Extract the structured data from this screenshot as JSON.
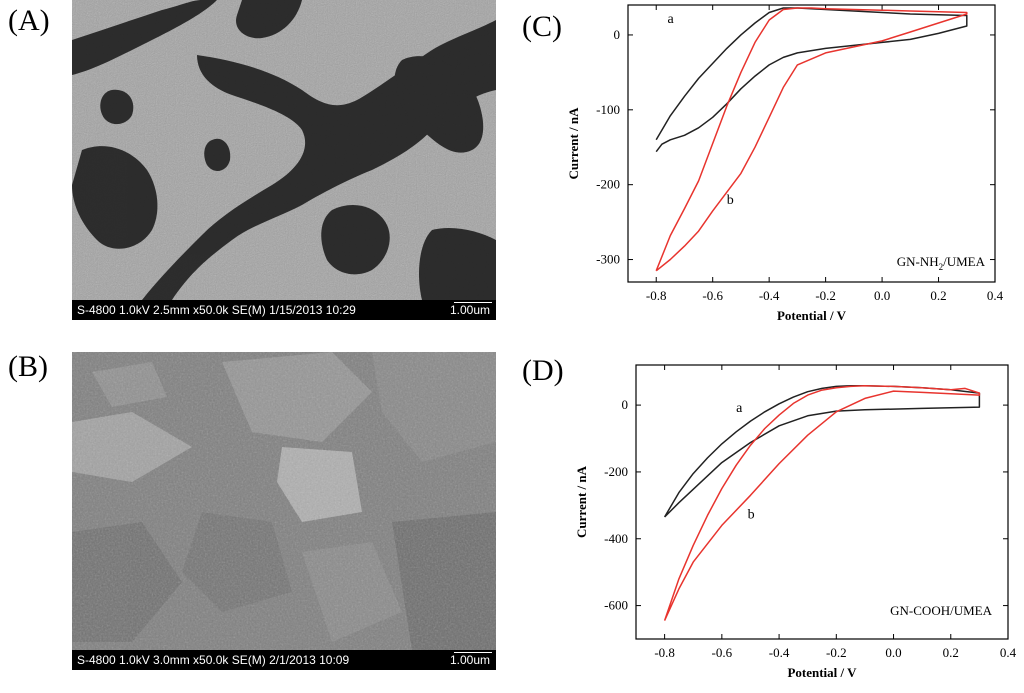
{
  "panels": {
    "A": {
      "label": "(A)"
    },
    "B": {
      "label": "(B)"
    },
    "C": {
      "label": "(C)"
    },
    "D": {
      "label": "(D)"
    }
  },
  "sem_a": {
    "meta": "S-4800 1.0kV 2.5mm x50.0k SE(M) 1/15/2013 10:29",
    "scale": "1.00um"
  },
  "sem_b": {
    "meta": "S-4800 1.0kV 3.0mm x50.0k SE(M) 2/1/2013 10:09",
    "scale": "1.00um"
  },
  "chart_data": [
    {
      "type": "line",
      "panel": "C",
      "annotation": "GN-NH2/UMEA",
      "annotation_main": "GN-NH",
      "annotation_sub": "2",
      "annotation_tail": "/UMEA",
      "xlabel": "Potential / V",
      "ylabel": "Current / nA",
      "xlim": [
        -0.9,
        0.4
      ],
      "ylim": [
        -330,
        40
      ],
      "xticks": [
        -0.8,
        -0.6,
        -0.4,
        -0.2,
        0.0,
        0.2,
        0.4
      ],
      "xtick_labels": [
        "-0.8",
        "-0.6",
        "-0.4",
        "-0.2",
        "0.0",
        "0.2",
        "0.4"
      ],
      "yticks": [
        0,
        -100,
        -200,
        -300
      ],
      "ytick_labels": [
        "0",
        "-100",
        "-200",
        "-300"
      ],
      "series": [
        {
          "name": "a",
          "color": "#222222",
          "label_at": [
            -0.76,
            16
          ],
          "x": [
            -0.8,
            -0.75,
            -0.7,
            -0.65,
            -0.6,
            -0.55,
            -0.5,
            -0.45,
            -0.4,
            -0.35,
            -0.3,
            -0.25,
            -0.2,
            -0.1,
            0.0,
            0.1,
            0.2,
            0.3,
            0.3,
            0.2,
            0.1,
            0.0,
            -0.1,
            -0.2,
            -0.3,
            -0.35,
            -0.4,
            -0.45,
            -0.5,
            -0.55,
            -0.6,
            -0.65,
            -0.7,
            -0.75,
            -0.78,
            -0.8
          ],
          "y": [
            -140,
            -108,
            -82,
            -58,
            -38,
            -18,
            0,
            16,
            30,
            36,
            36,
            35,
            34,
            32,
            30,
            28,
            27,
            26,
            12,
            2,
            -6,
            -10,
            -14,
            -18,
            -24,
            -30,
            -40,
            -55,
            -72,
            -92,
            -110,
            -124,
            -134,
            -140,
            -146,
            -156
          ]
        },
        {
          "name": "b",
          "color": "#e8342e",
          "label_at": [
            -0.55,
            -226
          ],
          "x": [
            -0.8,
            -0.75,
            -0.7,
            -0.65,
            -0.6,
            -0.55,
            -0.5,
            -0.45,
            -0.4,
            -0.35,
            -0.3,
            -0.25,
            -0.2,
            -0.1,
            0.0,
            0.1,
            0.2,
            0.3,
            0.3,
            0.2,
            0.1,
            0.0,
            -0.1,
            -0.2,
            -0.3,
            -0.35,
            -0.4,
            -0.45,
            -0.5,
            -0.55,
            -0.6,
            -0.65,
            -0.7,
            -0.75,
            -0.8
          ],
          "y": [
            -315,
            -268,
            -232,
            -195,
            -145,
            -95,
            -50,
            -10,
            20,
            34,
            36,
            36,
            35,
            34,
            33,
            32,
            31,
            30,
            28,
            16,
            4,
            -8,
            -16,
            -24,
            -40,
            -70,
            -110,
            -150,
            -185,
            -210,
            -235,
            -262,
            -282,
            -300,
            -315
          ]
        }
      ]
    },
    {
      "type": "line",
      "panel": "D",
      "annotation": "GN-COOH/UMEA",
      "xlabel": "Potential / V",
      "ylabel": "Current / nA",
      "xlim": [
        -0.9,
        0.4
      ],
      "ylim": [
        -700,
        120
      ],
      "xticks": [
        -0.8,
        -0.6,
        -0.4,
        -0.2,
        0.0,
        0.2,
        0.4
      ],
      "xtick_labels": [
        "-0.8",
        "-0.6",
        "-0.4",
        "-0.2",
        "0.0",
        "0.2",
        "0.4"
      ],
      "yticks": [
        0,
        -200,
        -400,
        -600
      ],
      "ytick_labels": [
        "0",
        "-200",
        "-400",
        "-600"
      ],
      "series": [
        {
          "name": "a",
          "color": "#222222",
          "label_at": [
            -0.55,
            -20
          ],
          "x": [
            -0.8,
            -0.75,
            -0.7,
            -0.65,
            -0.6,
            -0.55,
            -0.5,
            -0.45,
            -0.4,
            -0.35,
            -0.3,
            -0.25,
            -0.2,
            -0.15,
            -0.1,
            0.0,
            0.1,
            0.2,
            0.3,
            0.3,
            0.2,
            0.1,
            0.0,
            -0.1,
            -0.2,
            -0.3,
            -0.4,
            -0.5,
            -0.6,
            -0.65,
            -0.7,
            -0.75,
            -0.8
          ],
          "y": [
            -335,
            -262,
            -205,
            -158,
            -116,
            -80,
            -48,
            -20,
            4,
            24,
            40,
            50,
            56,
            58,
            58,
            56,
            52,
            46,
            36,
            -6,
            -8,
            -10,
            -12,
            -14,
            -18,
            -32,
            -62,
            -112,
            -172,
            -212,
            -252,
            -292,
            -335
          ]
        },
        {
          "name": "b",
          "color": "#e8342e",
          "label_at": [
            -0.51,
            -340
          ],
          "x": [
            -0.8,
            -0.75,
            -0.7,
            -0.65,
            -0.6,
            -0.55,
            -0.5,
            -0.45,
            -0.4,
            -0.35,
            -0.3,
            -0.25,
            -0.2,
            -0.15,
            -0.1,
            0.0,
            0.1,
            0.2,
            0.25,
            0.3,
            0.3,
            0.2,
            0.1,
            0.0,
            -0.1,
            -0.2,
            -0.3,
            -0.4,
            -0.5,
            -0.6,
            -0.7,
            -0.75,
            -0.8
          ],
          "y": [
            -645,
            -520,
            -420,
            -330,
            -250,
            -180,
            -120,
            -70,
            -30,
            5,
            30,
            45,
            52,
            56,
            58,
            56,
            52,
            46,
            50,
            36,
            30,
            34,
            38,
            42,
            20,
            -20,
            -90,
            -175,
            -270,
            -360,
            -470,
            -550,
            -645
          ]
        }
      ]
    }
  ]
}
